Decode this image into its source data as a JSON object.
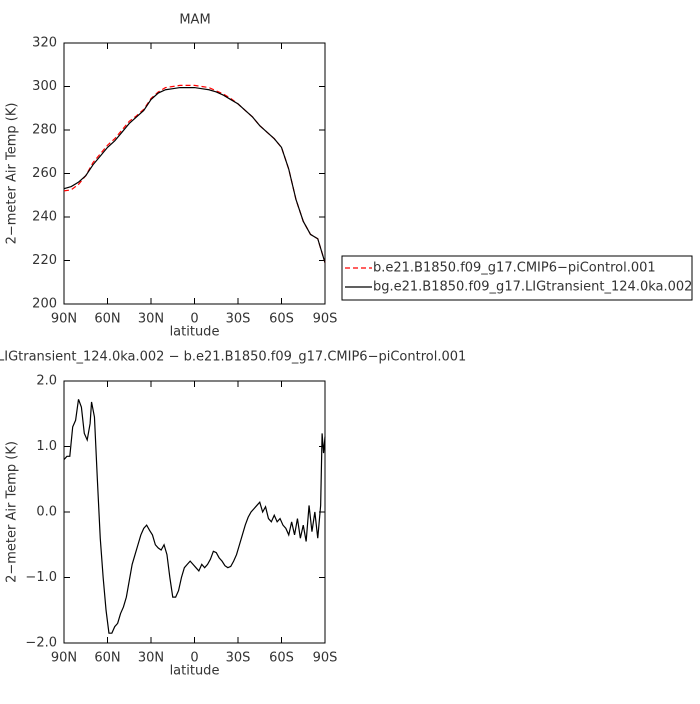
{
  "chart_data": [
    {
      "type": "line",
      "title": "MAM",
      "ylabel": "2−meter Air Temp (K)",
      "xlabel": "latitude",
      "x": [
        90,
        85,
        80,
        75,
        70,
        65,
        60,
        55,
        50,
        45,
        40,
        35,
        30,
        25,
        20,
        15,
        10,
        5,
        0,
        -5,
        -10,
        -15,
        -20,
        -25,
        -30,
        -35,
        -40,
        -45,
        -50,
        -55,
        -60,
        -65,
        -70,
        -75,
        -80,
        -85,
        -90
      ],
      "series": [
        {
          "name": "b.e21.B1850.f09_g17.CMIP6−piControl.001",
          "color": "#ff0000",
          "linestyle": "dashed",
          "values": [
            252,
            252.5,
            255,
            259,
            265,
            269,
            273,
            276,
            280,
            284,
            286.5,
            289.5,
            294.5,
            297.5,
            299.5,
            300,
            300.5,
            300.5,
            300.5,
            300,
            299.5,
            298,
            296.5,
            294.5,
            292,
            289,
            286,
            282,
            279,
            276,
            272,
            262,
            248,
            238,
            232,
            230,
            219
          ]
        },
        {
          "name": "bg.e21.B1850.f09_g17.LIGtransient_124.0ka.002",
          "color": "#000000",
          "linestyle": "solid",
          "values": [
            253,
            254,
            256,
            259,
            264,
            268,
            272,
            275,
            279,
            283,
            286,
            289,
            294,
            297,
            298.5,
            299,
            299.5,
            299.5,
            299.5,
            299,
            298.5,
            297.5,
            296,
            294,
            292,
            289,
            286,
            282,
            279,
            276,
            272,
            262,
            248,
            238,
            232,
            230,
            219
          ]
        }
      ],
      "xlim": [
        90,
        -90
      ],
      "xticks": [
        {
          "value": 90,
          "label": "90N"
        },
        {
          "value": 60,
          "label": "60N"
        },
        {
          "value": 30,
          "label": "30N"
        },
        0,
        {
          "value": -30,
          "label": "30S"
        },
        {
          "value": -60,
          "label": "60S"
        },
        {
          "value": -90,
          "label": "90S"
        }
      ],
      "ylim": [
        200,
        320
      ],
      "yticks": [
        200,
        220,
        240,
        260,
        280,
        300,
        320
      ],
      "legend": "right"
    },
    {
      "type": "line",
      "title": "LIGtransient_124.0ka.002 − b.e21.B1850.f09_g17.CMIP6−piControl.001",
      "ylabel": "2−meter Air Temp (K)",
      "xlabel": "latitude",
      "x": [
        90,
        88,
        86,
        84,
        82,
        80,
        78,
        76,
        74,
        72,
        71,
        69,
        67,
        65,
        63,
        61,
        59,
        57,
        55,
        53,
        51,
        49,
        47,
        45,
        43,
        41,
        39,
        37,
        35,
        33,
        31,
        29,
        27,
        25,
        23,
        21,
        19,
        17,
        15,
        13,
        11,
        9,
        7,
        5,
        3,
        1,
        -1,
        -3,
        -5,
        -7,
        -9,
        -11,
        -13,
        -15,
        -17,
        -19,
        -21,
        -23,
        -25,
        -27,
        -29,
        -31,
        -33,
        -35,
        -37,
        -39,
        -41,
        -43,
        -45,
        -47,
        -49,
        -51,
        -53,
        -55,
        -57,
        -59,
        -61,
        -63,
        -65,
        -67,
        -69,
        -71,
        -73,
        -75,
        -77,
        -79,
        -81,
        -83,
        -85,
        -87,
        -88,
        -89,
        -90
      ],
      "series": [
        {
          "color": "#000000",
          "linestyle": "solid",
          "values": [
            0.8,
            0.85,
            0.85,
            1.3,
            1.4,
            1.72,
            1.6,
            1.2,
            1.1,
            1.35,
            1.68,
            1.45,
            0.5,
            -0.4,
            -1.0,
            -1.5,
            -1.85,
            -1.85,
            -1.75,
            -1.7,
            -1.55,
            -1.45,
            -1.3,
            -1.05,
            -0.8,
            -0.65,
            -0.5,
            -0.35,
            -0.25,
            -0.2,
            -0.28,
            -0.35,
            -0.5,
            -0.55,
            -0.58,
            -0.5,
            -0.65,
            -1.0,
            -1.3,
            -1.3,
            -1.2,
            -1.0,
            -0.85,
            -0.8,
            -0.75,
            -0.8,
            -0.85,
            -0.9,
            -0.8,
            -0.85,
            -0.8,
            -0.72,
            -0.6,
            -0.62,
            -0.7,
            -0.75,
            -0.82,
            -0.85,
            -0.83,
            -0.75,
            -0.65,
            -0.5,
            -0.35,
            -0.2,
            -0.08,
            0.0,
            0.05,
            0.1,
            0.15,
            0.0,
            0.08,
            -0.1,
            -0.15,
            -0.05,
            -0.15,
            -0.1,
            -0.2,
            -0.25,
            -0.35,
            -0.15,
            -0.35,
            -0.1,
            -0.4,
            -0.2,
            -0.45,
            0.1,
            -0.3,
            0.0,
            -0.4,
            0.1,
            1.2,
            0.9,
            1.15
          ]
        }
      ],
      "xlim": [
        90,
        -90
      ],
      "xticks": [
        {
          "value": 90,
          "label": "90N"
        },
        {
          "value": 60,
          "label": "60N"
        },
        {
          "value": 30,
          "label": "30N"
        },
        0,
        {
          "value": -30,
          "label": "30S"
        },
        {
          "value": -60,
          "label": "60S"
        },
        {
          "value": -90,
          "label": "90S"
        }
      ],
      "ylim": [
        -2,
        2
      ],
      "yticks": [
        {
          "value": -2,
          "label": "−2.0"
        },
        {
          "value": -1,
          "label": "−1.0"
        },
        {
          "value": 0,
          "label": "0.0"
        },
        {
          "value": 1,
          "label": "1.0"
        },
        {
          "value": 2,
          "label": "2.0"
        }
      ]
    }
  ]
}
